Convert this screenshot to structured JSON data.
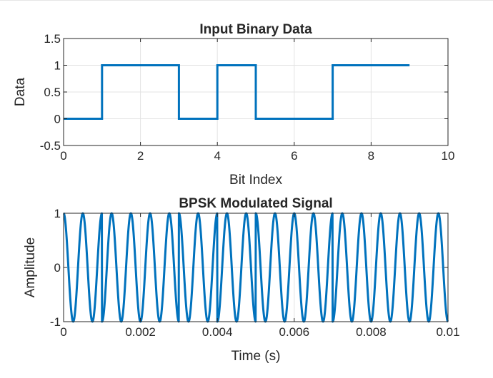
{
  "chart_data": [
    {
      "type": "line",
      "title": "Input Binary Data",
      "xlabel": "Bit Index",
      "ylabel": "Data",
      "xlim": [
        0,
        10
      ],
      "ylim": [
        -0.5,
        1.5
      ],
      "xticks": [
        "0",
        "2",
        "4",
        "6",
        "8",
        "10"
      ],
      "yticks": [
        "-0.5",
        "0",
        "0.5",
        "1",
        "1.5"
      ],
      "grid": true,
      "step": "post",
      "x": [
        0,
        1,
        2,
        3,
        4,
        5,
        6,
        7,
        8,
        9
      ],
      "series": [
        {
          "values": [
            0,
            1,
            1,
            0,
            1,
            0,
            0,
            1,
            1,
            1
          ]
        }
      ]
    },
    {
      "type": "line",
      "title": "BPSK Modulated Signal",
      "xlabel": "Time (s)",
      "ylabel": "Amplitude",
      "xlim": [
        0,
        0.01
      ],
      "ylim": [
        -1,
        1
      ],
      "xticks": [
        "0",
        "0.002",
        "0.004",
        "0.006",
        "0.008",
        "0.01"
      ],
      "yticks": [
        "-1",
        "0",
        "1"
      ],
      "grid": true,
      "carrier_frequency_hz": 2000,
      "bit_duration_s": 0.001,
      "bits": [
        0,
        1,
        1,
        0,
        1,
        0,
        0,
        1,
        1,
        1
      ],
      "formula": "-cos(2*pi*f*t) for bit 1, cos(2*pi*f*t) for bit 0"
    }
  ],
  "colors": {
    "line": "#0072BD",
    "grid": "#e3e3e3",
    "axis": "#262626"
  }
}
